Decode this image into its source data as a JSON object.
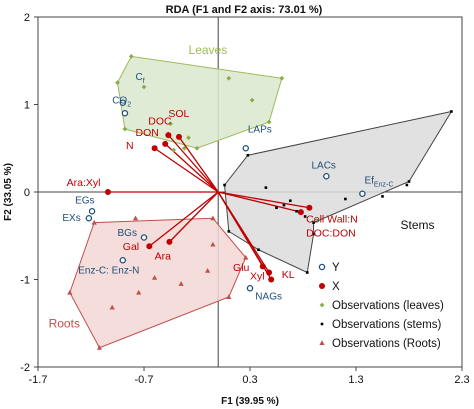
{
  "chart_data": {
    "type": "scatter",
    "title": "RDA (F1 and F2 axis: 73.01 %)",
    "xlabel": "F1 (39.95 %)",
    "ylabel": "F2 (33.05 %)",
    "xlim": [
      -1.7,
      2.3
    ],
    "ylim": [
      -2,
      2
    ],
    "xticks": [
      "-1.7",
      "-0.7",
      "0.3",
      "1.3",
      "2.3"
    ],
    "yticks": [
      "-2",
      "-1",
      "0",
      "1",
      "2"
    ],
    "xtick_values": [
      -1.7,
      -0.7,
      0.3,
      1.3,
      2.3
    ],
    "ytick_values": [
      -2,
      -1,
      0,
      1,
      2
    ],
    "colors": {
      "leaves_fill": "#dbe8cf",
      "leaves_stroke": "#9bbb59",
      "leaves_point": "#8aad4a",
      "stems_fill": "#dcdcdc",
      "stems_stroke": "#444444",
      "stems_point": "#000000",
      "roots_fill": "#f2d7d5",
      "roots_stroke": "#c0504d",
      "roots_point": "#c0504d",
      "x_color": "#c00000",
      "y_color": "#1f4e79"
    },
    "groups": [
      {
        "label": "Leaves",
        "label_pos": [
          -0.28,
          1.58
        ],
        "hull": [
          [
            -0.95,
            1.25
          ],
          [
            -0.82,
            1.55
          ],
          [
            0.6,
            1.3
          ],
          [
            0.48,
            0.8
          ],
          [
            -0.2,
            0.5
          ],
          [
            -0.88,
            0.72
          ]
        ]
      },
      {
        "label": "Stems",
        "label_pos": [
          1.72,
          -0.42
        ],
        "hull": [
          [
            0.06,
            0.08
          ],
          [
            0.28,
            0.42
          ],
          [
            2.2,
            0.92
          ],
          [
            1.8,
            0.12
          ],
          [
            0.9,
            -0.35
          ],
          [
            0.9,
            -0.48
          ],
          [
            0.84,
            -0.92
          ],
          [
            0.38,
            -0.66
          ],
          [
            0.1,
            -0.45
          ]
        ]
      },
      {
        "label": "Roots",
        "label_pos": [
          -1.6,
          -1.55
        ],
        "hull": [
          [
            -1.17,
            -0.35
          ],
          [
            -1.4,
            -1.15
          ],
          [
            -1.12,
            -1.78
          ],
          [
            0.1,
            -1.2
          ],
          [
            0.26,
            -0.75
          ],
          [
            -0.05,
            -0.3
          ]
        ]
      }
    ],
    "series": [
      {
        "name": "Y",
        "marker": "open-circle",
        "points": [
          {
            "label": "Cf",
            "x": -0.9,
            "y": 1.02,
            "lx": -0.78,
            "ly": 1.28
          },
          {
            "label": "CO2",
            "x": -0.88,
            "y": 0.9,
            "lx": -1.0,
            "ly": 1.01
          },
          {
            "label": "LAPs",
            "x": 0.26,
            "y": 0.5,
            "lx": 0.28,
            "ly": 0.68
          },
          {
            "label": "LACs",
            "x": 1.02,
            "y": 0.18,
            "lx": 0.88,
            "ly": 0.27
          },
          {
            "label": "EfEnz-C",
            "x": 1.36,
            "y": -0.02,
            "lx": 1.38,
            "ly": 0.1
          },
          {
            "label": "EGs",
            "x": -1.19,
            "y": -0.22,
            "lx": -1.35,
            "ly": -0.13
          },
          {
            "label": "EXs",
            "x": -1.22,
            "y": -0.3,
            "lx": -1.47,
            "ly": -0.33
          },
          {
            "label": "BGs",
            "x": -0.7,
            "y": -0.52,
            "lx": -0.95,
            "ly": -0.5
          },
          {
            "label": "Enz-C: Enz-N",
            "x": -0.9,
            "y": -0.78,
            "lx": -1.32,
            "ly": -0.93
          },
          {
            "label": "NAGs",
            "x": 0.3,
            "y": -1.1,
            "lx": 0.35,
            "ly": -1.23
          }
        ]
      },
      {
        "name": "X",
        "marker": "filled-circle",
        "points": [
          {
            "label": "SOL",
            "x": -0.37,
            "y": 0.63,
            "lx": -0.47,
            "ly": 0.86
          },
          {
            "label": "DOC",
            "x": -0.47,
            "y": 0.65,
            "lx": -0.66,
            "ly": 0.77
          },
          {
            "label": "DON",
            "x": -0.5,
            "y": 0.55,
            "lx": -0.78,
            "ly": 0.64
          },
          {
            "label": "N",
            "x": -0.6,
            "y": 0.5,
            "lx": -0.87,
            "ly": 0.49
          },
          {
            "label": "Ara:Xyl",
            "x": -1.04,
            "y": 0.0,
            "lx": -1.43,
            "ly": 0.07
          },
          {
            "label": "Cell Wall:N",
            "x": 0.78,
            "y": -0.23,
            "lx": 0.83,
            "ly": -0.35
          },
          {
            "label": "DOC:DON",
            "x": 0.86,
            "y": -0.18,
            "lx": 0.83,
            "ly": -0.51
          },
          {
            "label": "Gal",
            "x": -0.65,
            "y": -0.62,
            "lx": -0.9,
            "ly": -0.66
          },
          {
            "label": "Ara",
            "x": -0.46,
            "y": -0.57,
            "lx": -0.6,
            "ly": -0.77
          },
          {
            "label": "Glu",
            "x": 0.42,
            "y": -0.85,
            "lx": 0.14,
            "ly": -0.9
          },
          {
            "label": "Xyl",
            "x": 0.48,
            "y": -0.92,
            "lx": 0.3,
            "ly": -1.0
          },
          {
            "label": "KL",
            "x": 0.5,
            "y": -1.0,
            "lx": 0.6,
            "ly": -0.98
          }
        ]
      },
      {
        "name": "Observations (leaves)",
        "marker": "diamond",
        "points": [
          [
            -0.95,
            1.25
          ],
          [
            -0.82,
            1.55
          ],
          [
            0.6,
            1.3
          ],
          [
            0.48,
            0.8
          ],
          [
            -0.2,
            0.5
          ],
          [
            -0.88,
            0.72
          ],
          [
            -0.42,
            0.48
          ],
          [
            -0.32,
            0.5
          ],
          [
            -0.28,
            0.62
          ],
          [
            -0.45,
            0.78
          ],
          [
            -0.7,
            1.2
          ],
          [
            0.1,
            1.3
          ],
          [
            0.32,
            1.05
          ]
        ]
      },
      {
        "name": "Observations (stems)",
        "marker": "dot",
        "points": [
          [
            0.06,
            0.08
          ],
          [
            0.28,
            0.42
          ],
          [
            2.2,
            0.92
          ],
          [
            1.8,
            0.12
          ],
          [
            0.9,
            -0.35
          ],
          [
            0.9,
            -0.48
          ],
          [
            0.84,
            -0.92
          ],
          [
            0.38,
            -0.66
          ],
          [
            0.1,
            -0.45
          ],
          [
            0.55,
            -0.18
          ],
          [
            0.62,
            -0.15
          ],
          [
            0.68,
            -0.1
          ],
          [
            0.74,
            -0.22
          ],
          [
            0.82,
            -0.28
          ],
          [
            1.2,
            -0.08
          ],
          [
            1.55,
            -0.05
          ],
          [
            1.78,
            0.08
          ],
          [
            0.45,
            0.05
          ]
        ]
      },
      {
        "name": "Observations (Roots)",
        "marker": "triangle",
        "points": [
          [
            -1.17,
            -0.35
          ],
          [
            -1.4,
            -1.15
          ],
          [
            -1.12,
            -1.78
          ],
          [
            0.1,
            -1.2
          ],
          [
            0.26,
            -0.75
          ],
          [
            -0.05,
            -0.3
          ],
          [
            -1.0,
            -1.32
          ],
          [
            -0.75,
            -1.15
          ],
          [
            -0.6,
            -0.98
          ],
          [
            -0.35,
            -1.05
          ],
          [
            -0.1,
            -0.9
          ],
          [
            -0.05,
            -0.6
          ],
          [
            -0.78,
            -0.3
          ]
        ]
      }
    ],
    "legend": {
      "position": "bottom-right",
      "entries": [
        "Y",
        "X",
        "Observations (leaves)",
        "Observations (stems)",
        "Observations (Roots)"
      ]
    }
  }
}
